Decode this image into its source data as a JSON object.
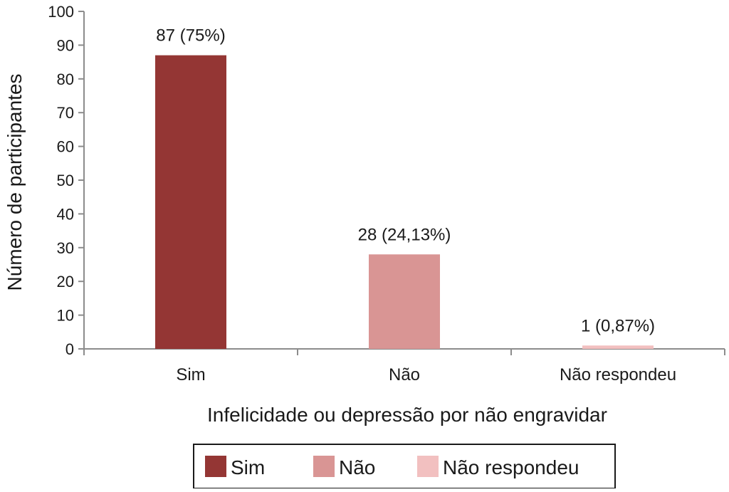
{
  "chart_data": {
    "type": "bar",
    "categories": [
      "Sim",
      "Não",
      "Não respondeu"
    ],
    "values": [
      87,
      28,
      1
    ],
    "data_labels": [
      "87 (75%)",
      "28 (24,13%)",
      "1 (0,87%)"
    ],
    "colors": [
      "#943634",
      "#d99594",
      "#f2c0c0"
    ],
    "xlabel": "Infelicidade ou depressão por não engravidar",
    "ylabel": "Número de participantes",
    "ylim": [
      0,
      100
    ],
    "yticks": [
      0,
      10,
      20,
      30,
      40,
      50,
      60,
      70,
      80,
      90,
      100
    ],
    "grid": false,
    "legend": {
      "placement": "bottom",
      "entries": [
        "Sim",
        "Não",
        "Não respondeu"
      ]
    }
  }
}
